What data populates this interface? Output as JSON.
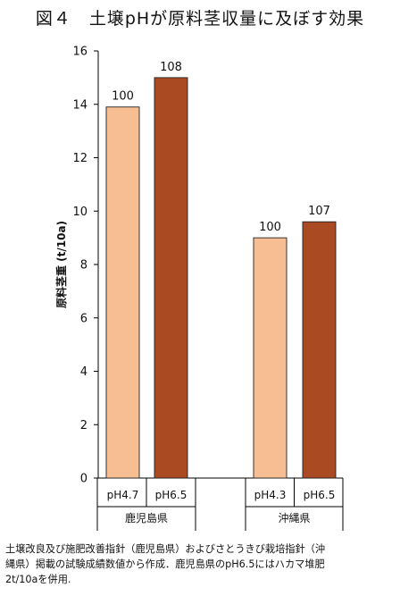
{
  "figure": {
    "title": "図４　土壌pHが原料茎収量に及ぼす効果",
    "caption": "土壌改良及び施肥改善指針（鹿児島県）およびさとうきび栽培指針（沖\n縄県）掲載の試験成績数値から作成．鹿児島県のpH6.5にはハカマ堆肥\n2t/10aを併用."
  },
  "chart_data": {
    "type": "bar",
    "title": "",
    "ylabel": "原料茎重 (t/10a)",
    "xlabel": "",
    "ylim": [
      0,
      16
    ],
    "yticks": [
      0,
      2,
      4,
      6,
      8,
      10,
      12,
      14,
      16
    ],
    "grid": false,
    "groups": [
      {
        "name": "鹿児島県",
        "bars": [
          {
            "category": "pH4.7",
            "value": 13.9,
            "label": "100",
            "color": "#f7be94"
          },
          {
            "category": "pH6.5",
            "value": 15.0,
            "label": "108",
            "color": "#a94a23"
          }
        ]
      },
      {
        "name": "沖縄県",
        "bars": [
          {
            "category": "pH4.3",
            "value": 9.0,
            "label": "100",
            "color": "#f7be94"
          },
          {
            "category": "pH6.5",
            "value": 9.6,
            "label": "107",
            "color": "#a94a23"
          }
        ]
      }
    ]
  }
}
